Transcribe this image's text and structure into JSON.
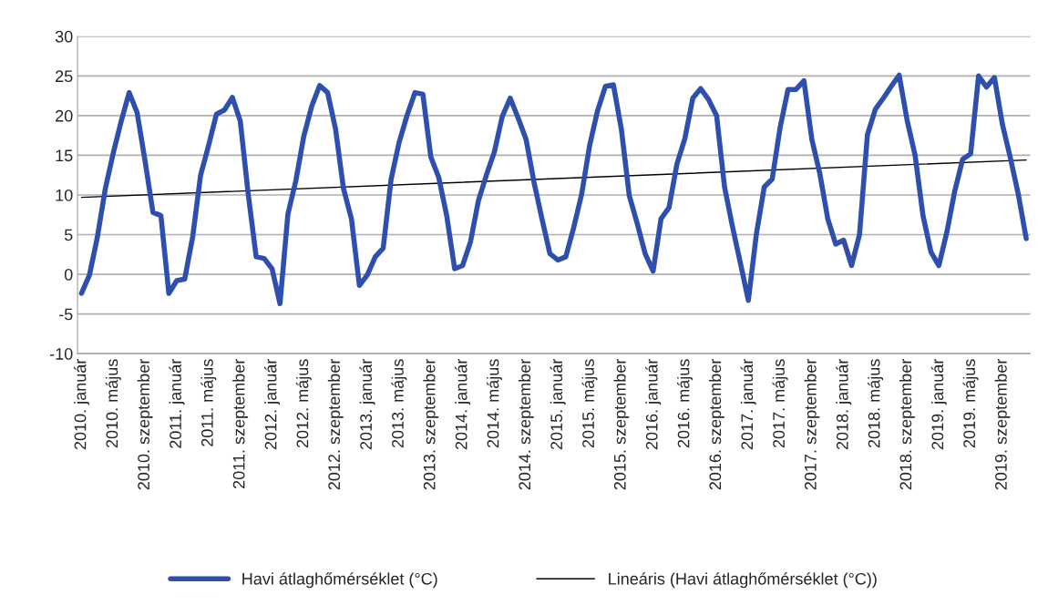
{
  "chart_data": {
    "type": "line",
    "categories": [
      "2010. január",
      null,
      null,
      null,
      "2010. május",
      null,
      null,
      null,
      "2010. szeptember",
      null,
      null,
      null,
      "2011. január",
      null,
      null,
      null,
      "2011. május",
      null,
      null,
      null,
      "2011. szeptember",
      null,
      null,
      null,
      "2012. január",
      null,
      null,
      null,
      "2012. május",
      null,
      null,
      null,
      "2012. szeptember",
      null,
      null,
      null,
      "2013. január",
      null,
      null,
      null,
      "2013. május",
      null,
      null,
      null,
      "2013. szeptember",
      null,
      null,
      null,
      "2014. január",
      null,
      null,
      null,
      "2014. május",
      null,
      null,
      null,
      "2014. szeptember",
      null,
      null,
      null,
      "2015. január",
      null,
      null,
      null,
      "2015. május",
      null,
      null,
      null,
      "2015. szeptember",
      null,
      null,
      null,
      "2016. január",
      null,
      null,
      null,
      "2016. május",
      null,
      null,
      null,
      "2016. szeptember",
      null,
      null,
      null,
      "2017. január",
      null,
      null,
      null,
      "2017. május",
      null,
      null,
      null,
      "2017. szeptember",
      null,
      null,
      null,
      "2018. január",
      null,
      null,
      null,
      "2018. május",
      null,
      null,
      null,
      "2018. szeptember",
      null,
      null,
      null,
      "2019. január",
      null,
      null,
      null,
      "2019. május",
      null,
      null,
      null,
      "2019. szeptember",
      null,
      null,
      null
    ],
    "series": [
      {
        "name": "Havi átlaghőmérséklet (°C)",
        "color": "#2e4fae",
        "values": [
          -2.4,
          -0.1,
          4.7,
          10.8,
          15.3,
          19.3,
          22.9,
          20.4,
          14.3,
          7.8,
          7.4,
          -2.4,
          -0.8,
          -0.6,
          4.7,
          12.5,
          16.2,
          20.2,
          20.7,
          22.3,
          19.3,
          10.1,
          2.2,
          2.0,
          0.7,
          -3.7,
          7.6,
          11.8,
          17.4,
          21.2,
          23.8,
          22.9,
          18.3,
          10.8,
          7.0,
          -1.4,
          -0.1,
          2.2,
          3.3,
          12.0,
          16.6,
          20.0,
          22.9,
          22.7,
          14.8,
          12.2,
          7.4,
          0.7,
          1.1,
          4.1,
          9.3,
          12.5,
          15.4,
          19.9,
          22.2,
          19.7,
          17.0,
          11.6,
          7.0,
          2.6,
          1.8,
          2.2,
          5.9,
          10.1,
          16.2,
          20.6,
          23.7,
          23.9,
          18.3,
          9.9,
          6.4,
          2.6,
          0.4,
          7.0,
          8.4,
          13.9,
          17.1,
          22.2,
          23.4,
          22.0,
          20.0,
          11.0,
          6.0,
          1.4,
          -3.3,
          5.0,
          11.0,
          12.0,
          18.5,
          23.3,
          23.3,
          24.4,
          17.0,
          12.7,
          7.0,
          3.8,
          4.3,
          1.1,
          5.0,
          17.6,
          20.8,
          22.2,
          23.7,
          25.1,
          19.4,
          15.0,
          7.4,
          2.8,
          1.1,
          5.3,
          10.5,
          14.5,
          15.2,
          25.0,
          23.6,
          24.8,
          18.9,
          14.7,
          10.1,
          4.5
        ]
      },
      {
        "name": "Lineáris (Havi átlaghőmérséklet (°C))",
        "color": "#000000",
        "values": [
          9.7,
          null,
          null,
          null,
          null,
          null,
          null,
          null,
          null,
          null,
          null,
          null,
          null,
          null,
          null,
          null,
          null,
          null,
          null,
          null,
          null,
          null,
          null,
          null,
          null,
          null,
          null,
          null,
          null,
          null,
          null,
          null,
          null,
          null,
          null,
          null,
          null,
          null,
          null,
          null,
          null,
          null,
          null,
          null,
          null,
          null,
          null,
          null,
          null,
          null,
          null,
          null,
          null,
          null,
          null,
          null,
          null,
          null,
          null,
          null,
          null,
          null,
          null,
          null,
          null,
          null,
          null,
          null,
          null,
          null,
          null,
          null,
          null,
          null,
          null,
          null,
          null,
          null,
          null,
          null,
          null,
          null,
          null,
          null,
          null,
          null,
          null,
          null,
          null,
          null,
          null,
          null,
          null,
          null,
          null,
          null,
          null,
          null,
          null,
          null,
          null,
          null,
          null,
          null,
          null,
          null,
          null,
          null,
          null,
          null,
          null,
          null,
          null,
          null,
          null,
          null,
          null,
          null,
          null,
          14.4
        ]
      }
    ],
    "ylim": [
      -10,
      30
    ],
    "yticks": [
      -10,
      -5,
      0,
      5,
      10,
      15,
      20,
      25,
      30
    ],
    "grid": "y",
    "legend": "bottom",
    "marker": "none",
    "line_style": "solid"
  }
}
